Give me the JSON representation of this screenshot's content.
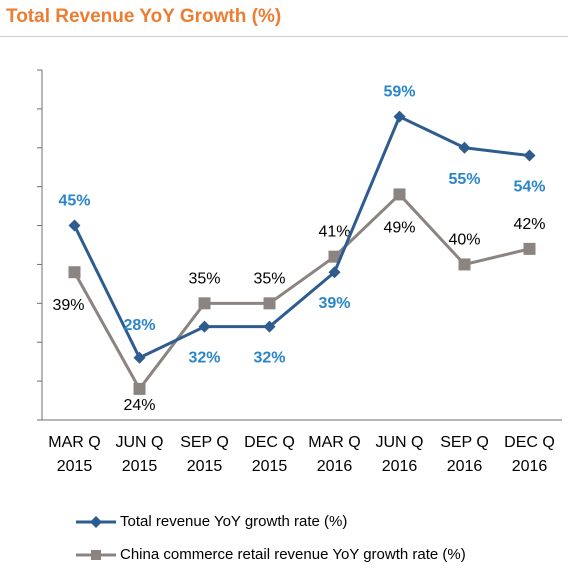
{
  "title": "Total Revenue YoY Growth  (%)",
  "colors": {
    "title": "#ed7d31",
    "total": "#2e5c8e",
    "total_label": "#2a86c9",
    "china": "#8b8480",
    "axis": "#6f6f6f"
  },
  "chart_data": {
    "type": "line",
    "title": "Total Revenue YoY Growth  (%)",
    "categories": [
      [
        "MAR Q",
        "2015"
      ],
      [
        "JUN Q",
        "2015"
      ],
      [
        "SEP Q",
        "2015"
      ],
      [
        "DEC Q",
        "2015"
      ],
      [
        "MAR Q",
        "2016"
      ],
      [
        "JUN Q",
        "2016"
      ],
      [
        "SEP Q",
        "2016"
      ],
      [
        "DEC Q",
        "2016"
      ]
    ],
    "series": [
      {
        "name": "Total revenue YoY growth rate (%)",
        "values": [
          45,
          28,
          32,
          32,
          39,
          59,
          55,
          54
        ],
        "labels": [
          "45%",
          "28%",
          "32%",
          "32%",
          "39%",
          "59%",
          "55%",
          "54%"
        ],
        "marker": "diamond",
        "color": "#2e5c8e"
      },
      {
        "name": "China commerce retail revenue YoY growth rate (%)",
        "values": [
          39,
          24,
          35,
          35,
          41,
          49,
          40,
          42
        ],
        "labels": [
          "39%",
          "24%",
          "35%",
          "35%",
          "41%",
          "49%",
          "40%",
          "42%"
        ],
        "marker": "square",
        "color": "#8b8480"
      }
    ],
    "ylim": [
      20,
      65
    ],
    "grid": false,
    "legend": "bottom"
  }
}
